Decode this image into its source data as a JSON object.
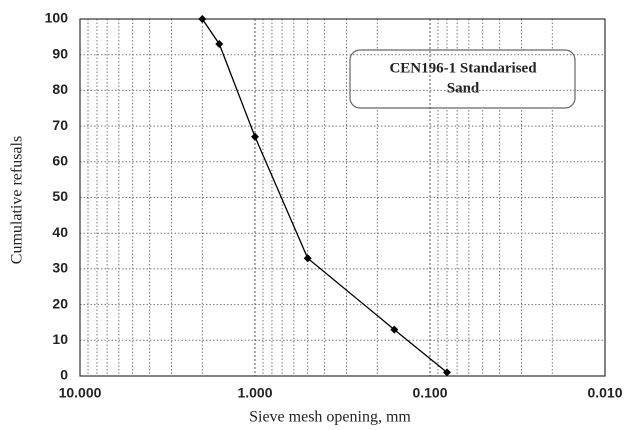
{
  "chart_data": {
    "type": "line",
    "annotation": [
      "CEN196-1 Standarised",
      "Sand"
    ],
    "x_label": "Sieve mesh opening, mm",
    "y_label": "Cumulative refusals",
    "x": [
      2,
      1.6,
      1,
      0.5,
      0.16,
      0.08
    ],
    "series": [
      {
        "color": "#000000",
        "values": [
          100,
          93,
          67,
          33,
          13,
          1
        ]
      }
    ],
    "xlim": [
      10,
      0.01
    ],
    "xticks": [
      {
        "value": 10,
        "label": "10.000"
      },
      {
        "value": 1,
        "label": "1.000"
      },
      {
        "value": 0.1,
        "label": "0.100"
      },
      {
        "value": 0.01,
        "label": "0.010"
      }
    ],
    "x_log": true,
    "x_minor_grid": true,
    "ylim": [
      0,
      100
    ],
    "yticks": [
      0,
      10,
      20,
      30,
      40,
      50,
      60,
      70,
      80,
      90,
      100
    ],
    "grid": true
  }
}
